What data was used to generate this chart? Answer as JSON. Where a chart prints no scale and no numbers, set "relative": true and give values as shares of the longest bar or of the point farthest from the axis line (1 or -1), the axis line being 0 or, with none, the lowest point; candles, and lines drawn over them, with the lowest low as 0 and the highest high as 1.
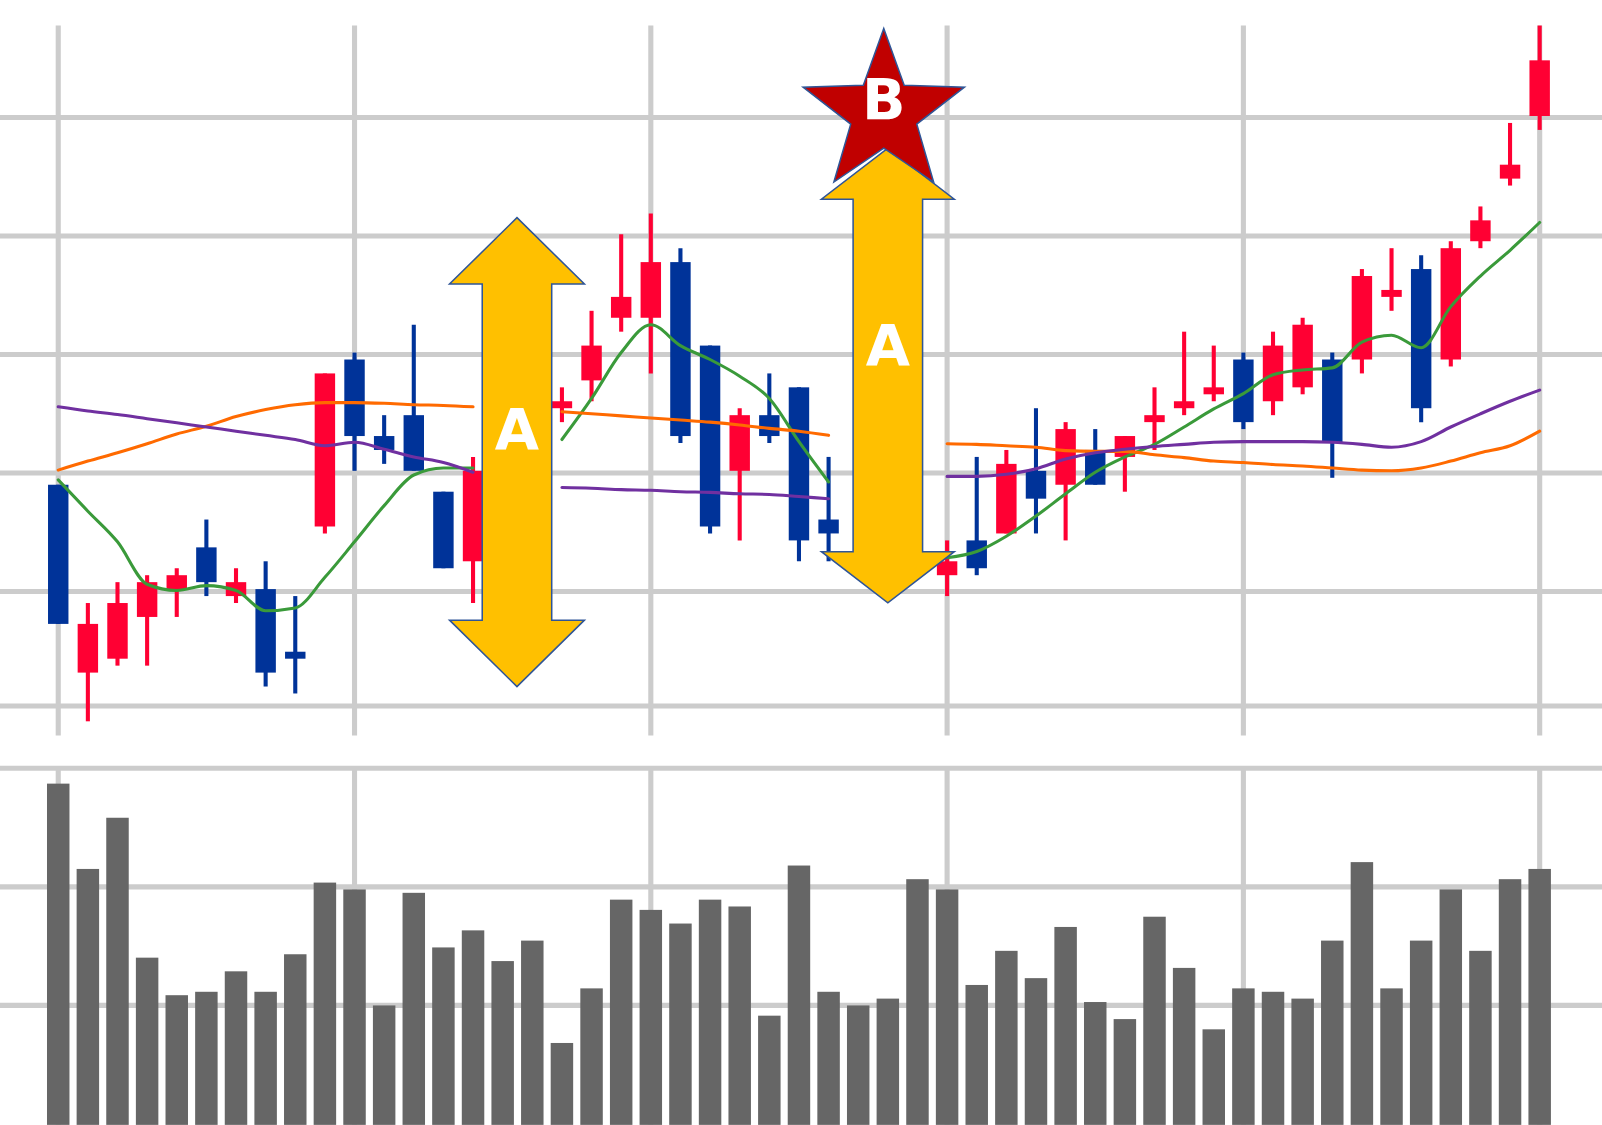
{
  "chart_data": [
    {
      "type": "candlestick",
      "relative": true,
      "grid": true,
      "categories": [
        null,
        null,
        null,
        null,
        null,
        null,
        null,
        null,
        null,
        null,
        null,
        null,
        null,
        null,
        null,
        null,
        null,
        null,
        null,
        null,
        null,
        null,
        null,
        null,
        null,
        null,
        null,
        null,
        null,
        null,
        null,
        null,
        null,
        null,
        null,
        null,
        null,
        null,
        null,
        null,
        null,
        null,
        null,
        null,
        null,
        null,
        null,
        null,
        null,
        null,
        null
      ],
      "ohlc": [
        [
          0.34,
          0.34,
          0.14,
          0.14
        ],
        [
          0.07,
          0.17,
          0,
          0.14
        ],
        [
          0.09,
          0.2,
          0.08,
          0.17
        ],
        [
          0.15,
          0.21,
          0.08,
          0.2
        ],
        [
          0.19,
          0.22,
          0.15,
          0.21
        ],
        [
          0.25,
          0.29,
          0.18,
          0.2
        ],
        [
          0.18,
          0.22,
          0.17,
          0.2
        ],
        [
          0.19,
          0.23,
          0.05,
          0.07
        ],
        [
          0.1,
          0.18,
          0.04,
          0.09
        ],
        [
          0.28,
          0.5,
          0.27,
          0.5
        ],
        [
          0.52,
          0.53,
          0.36,
          0.41
        ],
        [
          0.41,
          0.44,
          0.37,
          0.39
        ],
        [
          0.44,
          0.57,
          0.36,
          0.36
        ],
        [
          0.33,
          0.33,
          0.22,
          0.22
        ],
        [
          0.23,
          0.38,
          0.17,
          0.36
        ],
        null,
        null,
        [
          0.45,
          0.48,
          0.43,
          0.46
        ],
        [
          0.49,
          0.59,
          0.46,
          0.54
        ],
        [
          0.58,
          0.7,
          0.56,
          0.61
        ],
        [
          0.58,
          0.73,
          0.5,
          0.66
        ],
        [
          0.66,
          0.68,
          0.4,
          0.41
        ],
        [
          0.54,
          0.54,
          0.27,
          0.28
        ],
        [
          0.36,
          0.45,
          0.26,
          0.44
        ],
        [
          0.44,
          0.5,
          0.4,
          0.41
        ],
        [
          0.48,
          0.48,
          0.23,
          0.26
        ],
        [
          0.29,
          0.38,
          0.23,
          0.27
        ],
        null,
        null,
        null,
        [
          0.21,
          0.26,
          0.18,
          0.23
        ],
        [
          0.26,
          0.38,
          0.21,
          0.22
        ],
        [
          0.27,
          0.39,
          0.27,
          0.37
        ],
        [
          0.36,
          0.45,
          0.27,
          0.32
        ],
        [
          0.34,
          0.43,
          0.26,
          0.42
        ],
        [
          0.39,
          0.42,
          0.34,
          0.34
        ],
        [
          0.38,
          0.41,
          0.33,
          0.41
        ],
        [
          0.43,
          0.48,
          0.39,
          0.44
        ],
        [
          0.45,
          0.56,
          0.44,
          0.46
        ],
        [
          0.47,
          0.54,
          0.46,
          0.48
        ],
        [
          0.52,
          0.53,
          0.42,
          0.43
        ],
        [
          0.46,
          0.56,
          0.44,
          0.54
        ],
        [
          0.48,
          0.58,
          0.47,
          0.57
        ],
        [
          0.52,
          0.53,
          0.35,
          0.4
        ],
        [
          0.52,
          0.65,
          0.5,
          0.64
        ],
        [
          0.61,
          0.68,
          0.59,
          0.62
        ],
        [
          0.65,
          0.67,
          0.43,
          0.45
        ],
        [
          0.52,
          0.69,
          0.51,
          0.68
        ],
        [
          0.69,
          0.74,
          0.68,
          0.72
        ],
        [
          0.78,
          0.86,
          0.77,
          0.8
        ],
        [
          0.87,
          1,
          0.85,
          0.95
        ]
      ],
      "colors": [
        "#003399",
        "#ff0033",
        "#ff0033",
        "#ff0033",
        "#ff0033",
        "#003399",
        "#ff0033",
        "#003399",
        "#003399",
        "#ff0033",
        "#003399",
        "#003399",
        "#003399",
        "#003399",
        "#ff0033",
        null,
        null,
        "#ff0033",
        "#ff0033",
        "#ff0033",
        "#ff0033",
        "#003399",
        "#003399",
        "#ff0033",
        "#003399",
        "#003399",
        "#003399",
        null,
        null,
        null,
        "#ff0033",
        "#003399",
        "#ff0033",
        "#003399",
        "#ff0033",
        "#003399",
        "#ff0033",
        "#ff0033",
        "#ff0033",
        "#ff0033",
        "#003399",
        "#ff0033",
        "#ff0033",
        "#003399",
        "#ff0033",
        "#ff0033",
        "#003399",
        "#ff0033",
        "#ff0033",
        "#ff0033",
        "#ff0033"
      ],
      "series": [
        {
          "type": "line",
          "color": "#3a9a3a",
          "values": [
            0.347,
            0.302,
            0.258,
            0.197,
            0.188,
            0.195,
            0.188,
            0.159,
            0.163,
            0.207,
            0.258,
            0.31,
            0.354,
            0.364,
            0.364,
            null,
            null,
            0.405,
            0.464,
            0.53,
            0.57,
            0.54,
            0.52,
            0.496,
            0.464,
            0.402,
            0.344,
            null,
            null,
            null,
            0.235,
            0.244,
            0.266,
            0.295,
            0.327,
            0.358,
            0.38,
            0.398,
            0.423,
            0.449,
            0.471,
            0.498,
            0.505,
            0.508,
            0.545,
            0.555,
            0.537,
            0.596,
            0.64,
            0.677,
            0.717
          ]
        },
        {
          "type": "line",
          "color": "#ff6a00",
          "values": [
            0.361,
            0.374,
            0.386,
            0.399,
            0.413,
            0.424,
            0.438,
            0.448,
            0.455,
            0.458,
            0.458,
            0.457,
            0.455,
            0.454,
            0.452,
            null,
            null,
            0.445,
            0.442,
            0.439,
            0.436,
            0.433,
            0.43,
            0.426,
            0.421,
            0.417,
            0.411,
            null,
            null,
            null,
            0.399,
            0.398,
            0.396,
            0.394,
            0.389,
            0.388,
            0.388,
            0.383,
            0.379,
            0.374,
            0.372,
            0.369,
            0.367,
            0.364,
            0.361,
            0.36,
            0.364,
            0.374,
            0.386,
            0.396,
            0.417
          ]
        },
        {
          "type": "line",
          "color": "#7030a0",
          "values": [
            0.452,
            0.446,
            0.441,
            0.435,
            0.429,
            0.423,
            0.417,
            0.411,
            0.405,
            0.396,
            0.401,
            0.391,
            0.38,
            0.372,
            0.358,
            null,
            null,
            0.336,
            0.335,
            0.333,
            0.332,
            0.33,
            0.329,
            0.327,
            0.326,
            0.323,
            0.32,
            null,
            null,
            null,
            0.352,
            0.352,
            0.355,
            0.363,
            0.377,
            0.386,
            0.391,
            0.395,
            0.398,
            0.401,
            0.402,
            0.402,
            0.402,
            0.401,
            0.398,
            0.394,
            0.402,
            0.423,
            0.442,
            0.46,
            0.476
          ]
        }
      ],
      "annotations": [
        "A",
        "A",
        "B"
      ]
    },
    {
      "type": "bar",
      "relative": true,
      "grid": true,
      "color": "#666666",
      "categories": [
        null,
        null,
        null,
        null,
        null,
        null,
        null,
        null,
        null,
        null,
        null,
        null,
        null,
        null,
        null,
        null,
        null,
        null,
        null,
        null,
        null,
        null,
        null,
        null,
        null,
        null,
        null,
        null,
        null,
        null,
        null,
        null,
        null,
        null,
        null,
        null,
        null,
        null,
        null,
        null,
        null,
        null,
        null,
        null,
        null,
        null,
        null,
        null,
        null,
        null,
        null
      ],
      "values": [
        1,
        0.75,
        0.9,
        0.49,
        0.38,
        0.39,
        0.45,
        0.39,
        0.5,
        0.71,
        0.69,
        0.35,
        0.68,
        0.52,
        0.57,
        0.48,
        0.54,
        0.24,
        0.4,
        0.66,
        0.63,
        0.59,
        0.66,
        0.64,
        0.32,
        0.76,
        0.39,
        0.35,
        0.37,
        0.72,
        0.69,
        0.41,
        0.51,
        0.43,
        0.58,
        0.36,
        0.31,
        0.61,
        0.46,
        0.28,
        0.4,
        0.39,
        0.37,
        0.54,
        0.77,
        0.4,
        0.54,
        0.69,
        0.51,
        0.72,
        0.75
      ]
    }
  ]
}
